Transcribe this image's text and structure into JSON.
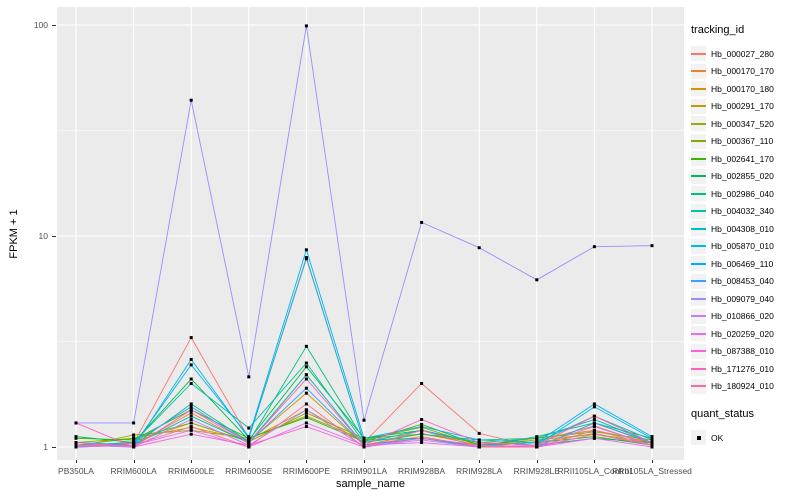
{
  "chart_data": {
    "type": "line",
    "title": "",
    "xlabel": "sample_name",
    "ylabel": "FPKM + 1",
    "y_scale": "log10",
    "y_ticks": [
      100,
      10,
      1
    ],
    "y_tick_labels": [
      "100",
      "10",
      "1"
    ],
    "ylim": [
      1,
      110
    ],
    "grid": "on",
    "legend_position": "right",
    "legend_title": "tracking_id",
    "point_shape": "square",
    "point_color": "#000000",
    "panel_bg": "#EBEBEB",
    "grid_color": "#FFFFFF",
    "axis_text_color": "#4D4D4D",
    "categories": [
      "PB350LA",
      "RRIM600LA",
      "RRIM600LE",
      "RRIM600SE",
      "RRIM600PE",
      "RRIM901LA",
      "RRIM928BA",
      "RRIM928LA",
      "RRIM928LE",
      "RRII105LA_Control",
      "RRII105LA_Stressed"
    ],
    "series": [
      {
        "name": "Hb_000027_280",
        "color": "#F8766D",
        "values": [
          1.0,
          1.04,
          3.3,
          1.1,
          7.8,
          1.05,
          2.0,
          1.16,
          1.0,
          1.3,
          1.04
        ]
      },
      {
        "name": "Hb_000170_170",
        "color": "#EA8331",
        "values": [
          1.0,
          1.02,
          1.45,
          1.04,
          2.2,
          1.02,
          1.12,
          1.0,
          1.06,
          1.26,
          1.02
        ]
      },
      {
        "name": "Hb_000170_180",
        "color": "#D89000",
        "values": [
          1.0,
          1.06,
          1.3,
          1.06,
          1.8,
          1.02,
          1.16,
          1.02,
          1.1,
          1.2,
          1.05
        ]
      },
      {
        "name": "Hb_000291_170",
        "color": "#C09B00",
        "values": [
          1.02,
          1.1,
          1.24,
          1.08,
          1.5,
          1.05,
          1.2,
          1.03,
          1.05,
          1.16,
          1.02
        ]
      },
      {
        "name": "Hb_000347_520",
        "color": "#A3A500",
        "values": [
          1.0,
          1.14,
          1.2,
          1.1,
          1.4,
          1.08,
          1.24,
          1.02,
          1.08,
          1.15,
          1.05
        ]
      },
      {
        "name": "Hb_000367_110",
        "color": "#7CAE00",
        "values": [
          1.05,
          1.1,
          1.3,
          1.06,
          1.45,
          1.1,
          1.15,
          1.05,
          1.1,
          1.18,
          1.08
        ]
      },
      {
        "name": "Hb_002641_170",
        "color": "#39B600",
        "values": [
          1.1,
          1.08,
          1.5,
          1.1,
          1.38,
          1.06,
          1.28,
          1.02,
          1.05,
          1.12,
          1.02
        ]
      },
      {
        "name": "Hb_002855_020",
        "color": "#00BB4E",
        "values": [
          1.12,
          1.05,
          2.1,
          1.08,
          2.4,
          1.1,
          1.2,
          1.05,
          1.02,
          1.1,
          1.05
        ]
      },
      {
        "name": "Hb_002986_040",
        "color": "#00BF7D",
        "values": [
          1.05,
          1.02,
          1.6,
          1.06,
          3.0,
          1.08,
          1.1,
          1.0,
          1.12,
          1.3,
          1.1
        ]
      },
      {
        "name": "Hb_004032_340",
        "color": "#00C1A3",
        "values": [
          1.02,
          1.05,
          2.0,
          1.23,
          2.5,
          1.05,
          1.15,
          1.08,
          1.1,
          1.35,
          1.05
        ]
      },
      {
        "name": "Hb_004308_010",
        "color": "#00BFC4",
        "values": [
          1.0,
          1.02,
          1.4,
          1.05,
          2.2,
          1.02,
          1.1,
          1.02,
          1.05,
          1.4,
          1.08
        ]
      },
      {
        "name": "Hb_005870_010",
        "color": "#00BAE0",
        "values": [
          1.02,
          1.0,
          2.6,
          1.1,
          7.9,
          1.05,
          1.2,
          1.05,
          1.02,
          1.55,
          1.1
        ]
      },
      {
        "name": "Hb_006469_110",
        "color": "#00B0F6",
        "values": [
          1.05,
          1.02,
          2.45,
          1.12,
          8.6,
          1.1,
          1.25,
          1.08,
          1.05,
          1.6,
          1.12
        ]
      },
      {
        "name": "Hb_008453_040",
        "color": "#35A2FF",
        "values": [
          1.0,
          1.05,
          1.55,
          1.05,
          1.9,
          1.02,
          1.1,
          1.02,
          1.0,
          1.3,
          1.05
        ]
      },
      {
        "name": "Hb_009079_040",
        "color": "#9590FF",
        "values": [
          1.3,
          1.3,
          44.0,
          2.15,
          99.0,
          1.34,
          11.6,
          8.8,
          6.2,
          8.9,
          9.0
        ]
      },
      {
        "name": "Hb_010866_020",
        "color": "#C77CFF",
        "values": [
          1.02,
          1.0,
          1.35,
          1.02,
          1.5,
          1.0,
          1.08,
          1.0,
          1.02,
          1.25,
          1.02
        ]
      },
      {
        "name": "Hb_020259_020",
        "color": "#E76BF3",
        "values": [
          1.0,
          1.02,
          1.2,
          1.0,
          1.3,
          1.02,
          1.05,
          1.0,
          1.0,
          1.1,
          1.0
        ]
      },
      {
        "name": "Hb_087388_010",
        "color": "#FA62DB",
        "values": [
          1.05,
          1.0,
          1.15,
          1.02,
          1.25,
          1.0,
          1.1,
          1.02,
          1.0,
          1.15,
          1.02
        ]
      },
      {
        "name": "Hb_171276_010",
        "color": "#FF62BC",
        "values": [
          1.3,
          1.0,
          1.5,
          1.05,
          2.1,
          1.02,
          1.35,
          1.05,
          1.02,
          1.4,
          1.05
        ]
      },
      {
        "name": "Hb_180924_010",
        "color": "#FF6A98",
        "values": [
          1.02,
          1.02,
          1.25,
          1.0,
          1.6,
          1.0,
          1.2,
          1.0,
          1.0,
          1.2,
          1.02
        ]
      }
    ],
    "quant_legend": {
      "title": "quant_status",
      "items": [
        "OK"
      ]
    }
  }
}
